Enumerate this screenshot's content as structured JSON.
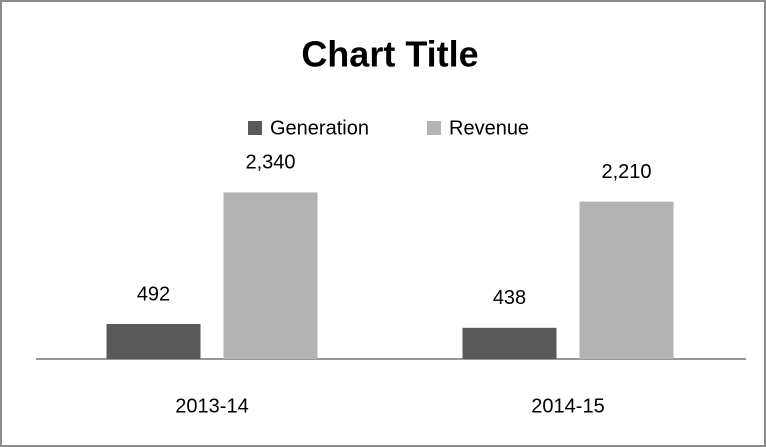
{
  "chart_data": {
    "type": "bar",
    "title": "Chart Title",
    "categories": [
      "2013-14",
      "2014-15"
    ],
    "series": [
      {
        "name": "Generation",
        "color": "#595959",
        "values": [
          492,
          438
        ]
      },
      {
        "name": "Revenue",
        "color": "#b3b3b3",
        "values": [
          2340,
          2210
        ],
        "value_labels": [
          "2,340",
          "2,210"
        ]
      }
    ],
    "ylim": [
      0,
      2500
    ],
    "legend": "top"
  }
}
